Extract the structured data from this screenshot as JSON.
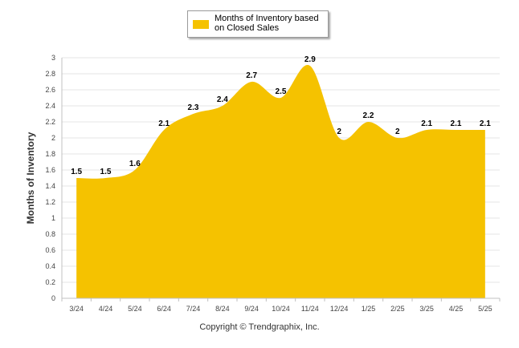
{
  "legend": {
    "label": "Months of Inventory based on Closed Sales"
  },
  "footer": {
    "text": "Copyright © Trendgraphix, Inc."
  },
  "colors": {
    "series": "#f5c200",
    "grid": "#e6e6e6",
    "axis": "#c0c0c0"
  },
  "chart_data": {
    "type": "area",
    "title": "",
    "xlabel": "",
    "ylabel": "Months of Inventory",
    "ylim": [
      0,
      3
    ],
    "yticks": [
      "0",
      "0.2",
      "0.4",
      "0.6",
      "0.8",
      "1",
      "1.2",
      "1.4",
      "1.6",
      "1.8",
      "2",
      "2.2",
      "2.4",
      "2.6",
      "2.8",
      "3"
    ],
    "categories": [
      "3/24",
      "4/24",
      "5/24",
      "6/24",
      "7/24",
      "8/24",
      "9/24",
      "10/24",
      "11/24",
      "12/24",
      "1/25",
      "2/25",
      "3/25",
      "4/25",
      "5/25"
    ],
    "series": [
      {
        "name": "Months of Inventory based on Closed Sales",
        "values": [
          1.5,
          1.5,
          1.6,
          2.1,
          2.3,
          2.4,
          2.7,
          2.5,
          2.9,
          2,
          2.2,
          2,
          2.1,
          2.1,
          2.1
        ],
        "labels": [
          "1.5",
          "1.5",
          "1.6",
          "2.1",
          "2.3",
          "2.4",
          "2.7",
          "2.5",
          "2.9",
          "2",
          "2.2",
          "2",
          "2.1",
          "2.1",
          "2.1"
        ]
      }
    ],
    "grid": true,
    "legend_position": "top-center"
  }
}
